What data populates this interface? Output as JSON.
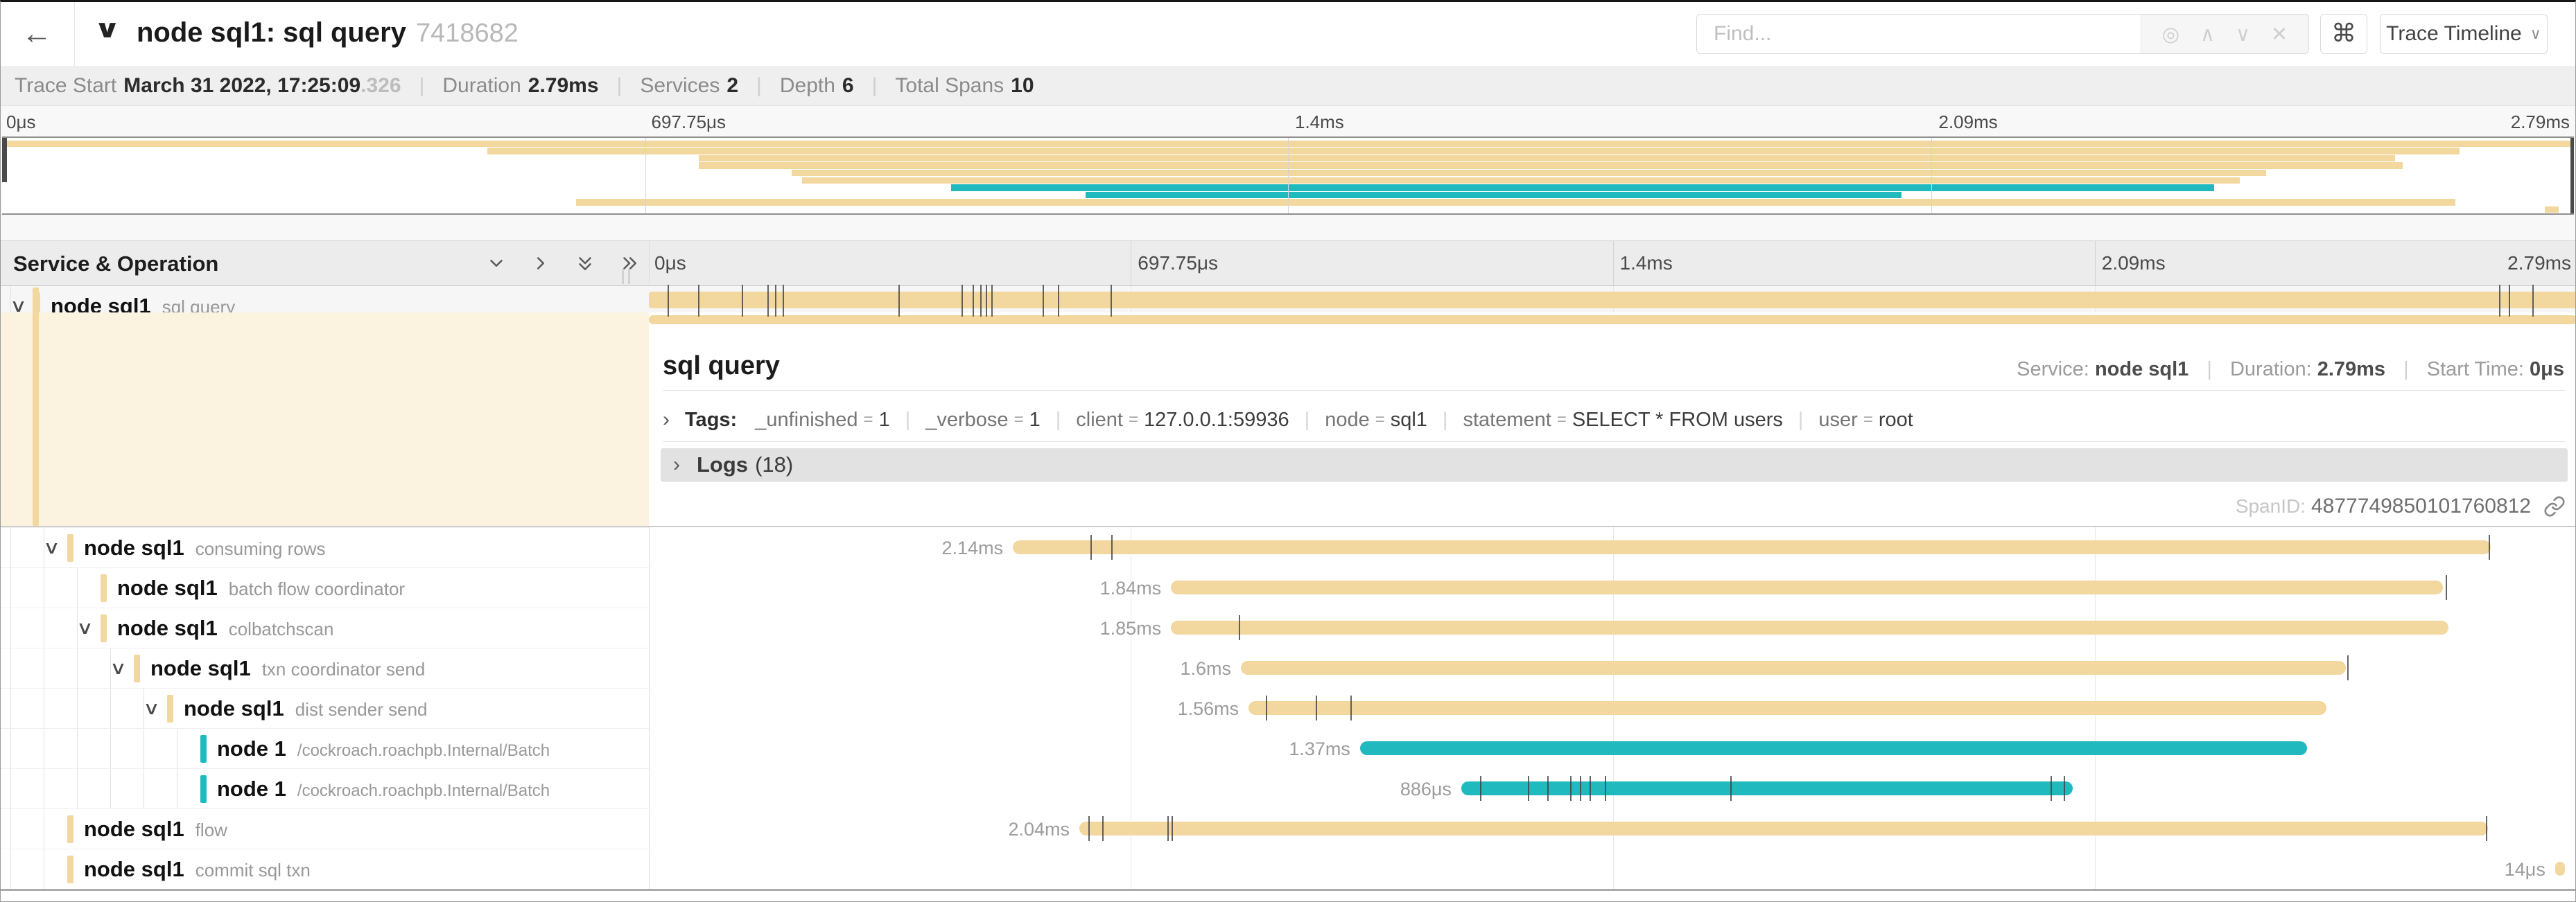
{
  "colors": {
    "span_tan": "#F2D79E",
    "span_teal": "#20B9BE",
    "accent_bg": "#FBF3E0",
    "tick": "#3F3F3F"
  },
  "header": {
    "back_icon": "←",
    "collapse_icon": "∨",
    "title": "node sql1: sql query",
    "trace_id": "7418682",
    "find_placeholder": "Find...",
    "find_icons": {
      "match": "◎",
      "prev": "∧",
      "next": "∨",
      "clear": "✕"
    },
    "shortcut_icon": "⌘",
    "view_button": "Trace Timeline",
    "view_button_caret": "∨"
  },
  "trace_meta": {
    "items": [
      {
        "label": "Trace Start",
        "value": "March 31 2022, 17:25:09",
        "suffix": ".326"
      },
      {
        "label": "Duration",
        "value": "2.79ms"
      },
      {
        "label": "Services",
        "value": "2"
      },
      {
        "label": "Depth",
        "value": "6"
      },
      {
        "label": "Total Spans",
        "value": "10"
      }
    ]
  },
  "timeline": {
    "left_header": "Service & Operation",
    "ticks": [
      {
        "label": "0μs",
        "pct": 0
      },
      {
        "label": "697.75μs",
        "pct": 25
      },
      {
        "label": "1.4ms",
        "pct": 50
      },
      {
        "label": "2.09ms",
        "pct": 75
      },
      {
        "label": "2.79ms",
        "pct": 100
      }
    ]
  },
  "detail": {
    "title": "sql query",
    "service_label": "Service:",
    "service": "node sql1",
    "duration_label": "Duration:",
    "duration": "2.79ms",
    "start_label": "Start Time:",
    "start": "0μs",
    "twisty": "›",
    "tags_label": "Tags:",
    "tags": [
      {
        "key": "_unfinished",
        "value": "1"
      },
      {
        "key": "_verbose",
        "value": "1"
      },
      {
        "key": "client",
        "value": "127.0.0.1:59936"
      },
      {
        "key": "node",
        "value": "sql1"
      },
      {
        "key": "statement",
        "value": "SELECT * FROM users"
      },
      {
        "key": "user",
        "value": "root"
      }
    ],
    "logs_label": "Logs",
    "logs_count": "(18)",
    "span_id_label": "SpanID:",
    "span_id": "4877749850101760812"
  },
  "spans": [
    {
      "service": "node sql1",
      "operation": "sql query",
      "depth": 0,
      "expandable": true,
      "color": "tan",
      "start": 0,
      "end": 100,
      "duration_label": "",
      "ticks": [
        0.97,
        2.55,
        4.82,
        6.15,
        6.54,
        6.94,
        12.95,
        16.22,
        16.79,
        17.19,
        17.48,
        17.76,
        20.42,
        21.22,
        23.95,
        95.97,
        96.48,
        97.7
      ]
    },
    {
      "service": "node sql1",
      "operation": "consuming rows",
      "depth": 1,
      "expandable": true,
      "color": "tan",
      "start": 18.88,
      "end": 95.55,
      "duration_label": "2.14ms",
      "ticks": [
        22.9,
        24.0,
        95.45
      ]
    },
    {
      "service": "node sql1",
      "operation": "batch flow coordinator",
      "depth": 2,
      "expandable": false,
      "color": "tan",
      "start": 27.08,
      "end": 93.05,
      "duration_label": "1.84ms",
      "ticks": [
        93.2
      ]
    },
    {
      "service": "node sql1",
      "operation": "colbatchscan",
      "depth": 2,
      "expandable": true,
      "color": "tan",
      "start": 27.08,
      "end": 93.35,
      "duration_label": "1.85ms",
      "ticks": [
        30.6
      ]
    },
    {
      "service": "node sql1",
      "operation": "txn coordinator send",
      "depth": 3,
      "expandable": true,
      "color": "tan",
      "start": 30.71,
      "end": 88.03,
      "duration_label": "1.6ms",
      "ticks": [
        88.1
      ]
    },
    {
      "service": "node sql1",
      "operation": "dist sender send",
      "depth": 4,
      "expandable": true,
      "color": "tan",
      "start": 31.11,
      "end": 87.02,
      "duration_label": "1.56ms",
      "ticks": [
        32.0,
        34.6,
        36.4
      ]
    },
    {
      "service": "node 1",
      "operation": "/cockroach.roachpb.Internal/Batch",
      "depth": 5,
      "expandable": false,
      "color": "teal",
      "start": 36.89,
      "end": 86.01,
      "duration_label": "1.37ms",
      "ticks": []
    },
    {
      "service": "node 1",
      "operation": "/cockroach.roachpb.Internal/Batch",
      "depth": 5,
      "expandable": false,
      "color": "teal",
      "start": 42.14,
      "end": 73.86,
      "duration_label": "886μs",
      "ticks": [
        43.1,
        45.6,
        46.6,
        47.8,
        48.3,
        48.8,
        49.6,
        56.1,
        72.7,
        73.4
      ]
    },
    {
      "service": "node sql1",
      "operation": "flow",
      "depth": 1,
      "expandable": false,
      "color": "tan",
      "start": 22.33,
      "end": 95.4,
      "duration_label": "2.04ms",
      "ticks": [
        22.8,
        23.5,
        26.9,
        27.1,
        95.3
      ]
    },
    {
      "service": "node sql1",
      "operation": "commit sql txn",
      "depth": 1,
      "expandable": false,
      "color": "tan",
      "start": 98.88,
      "end": 99.4,
      "duration_label": "14μs",
      "ticks": []
    }
  ]
}
